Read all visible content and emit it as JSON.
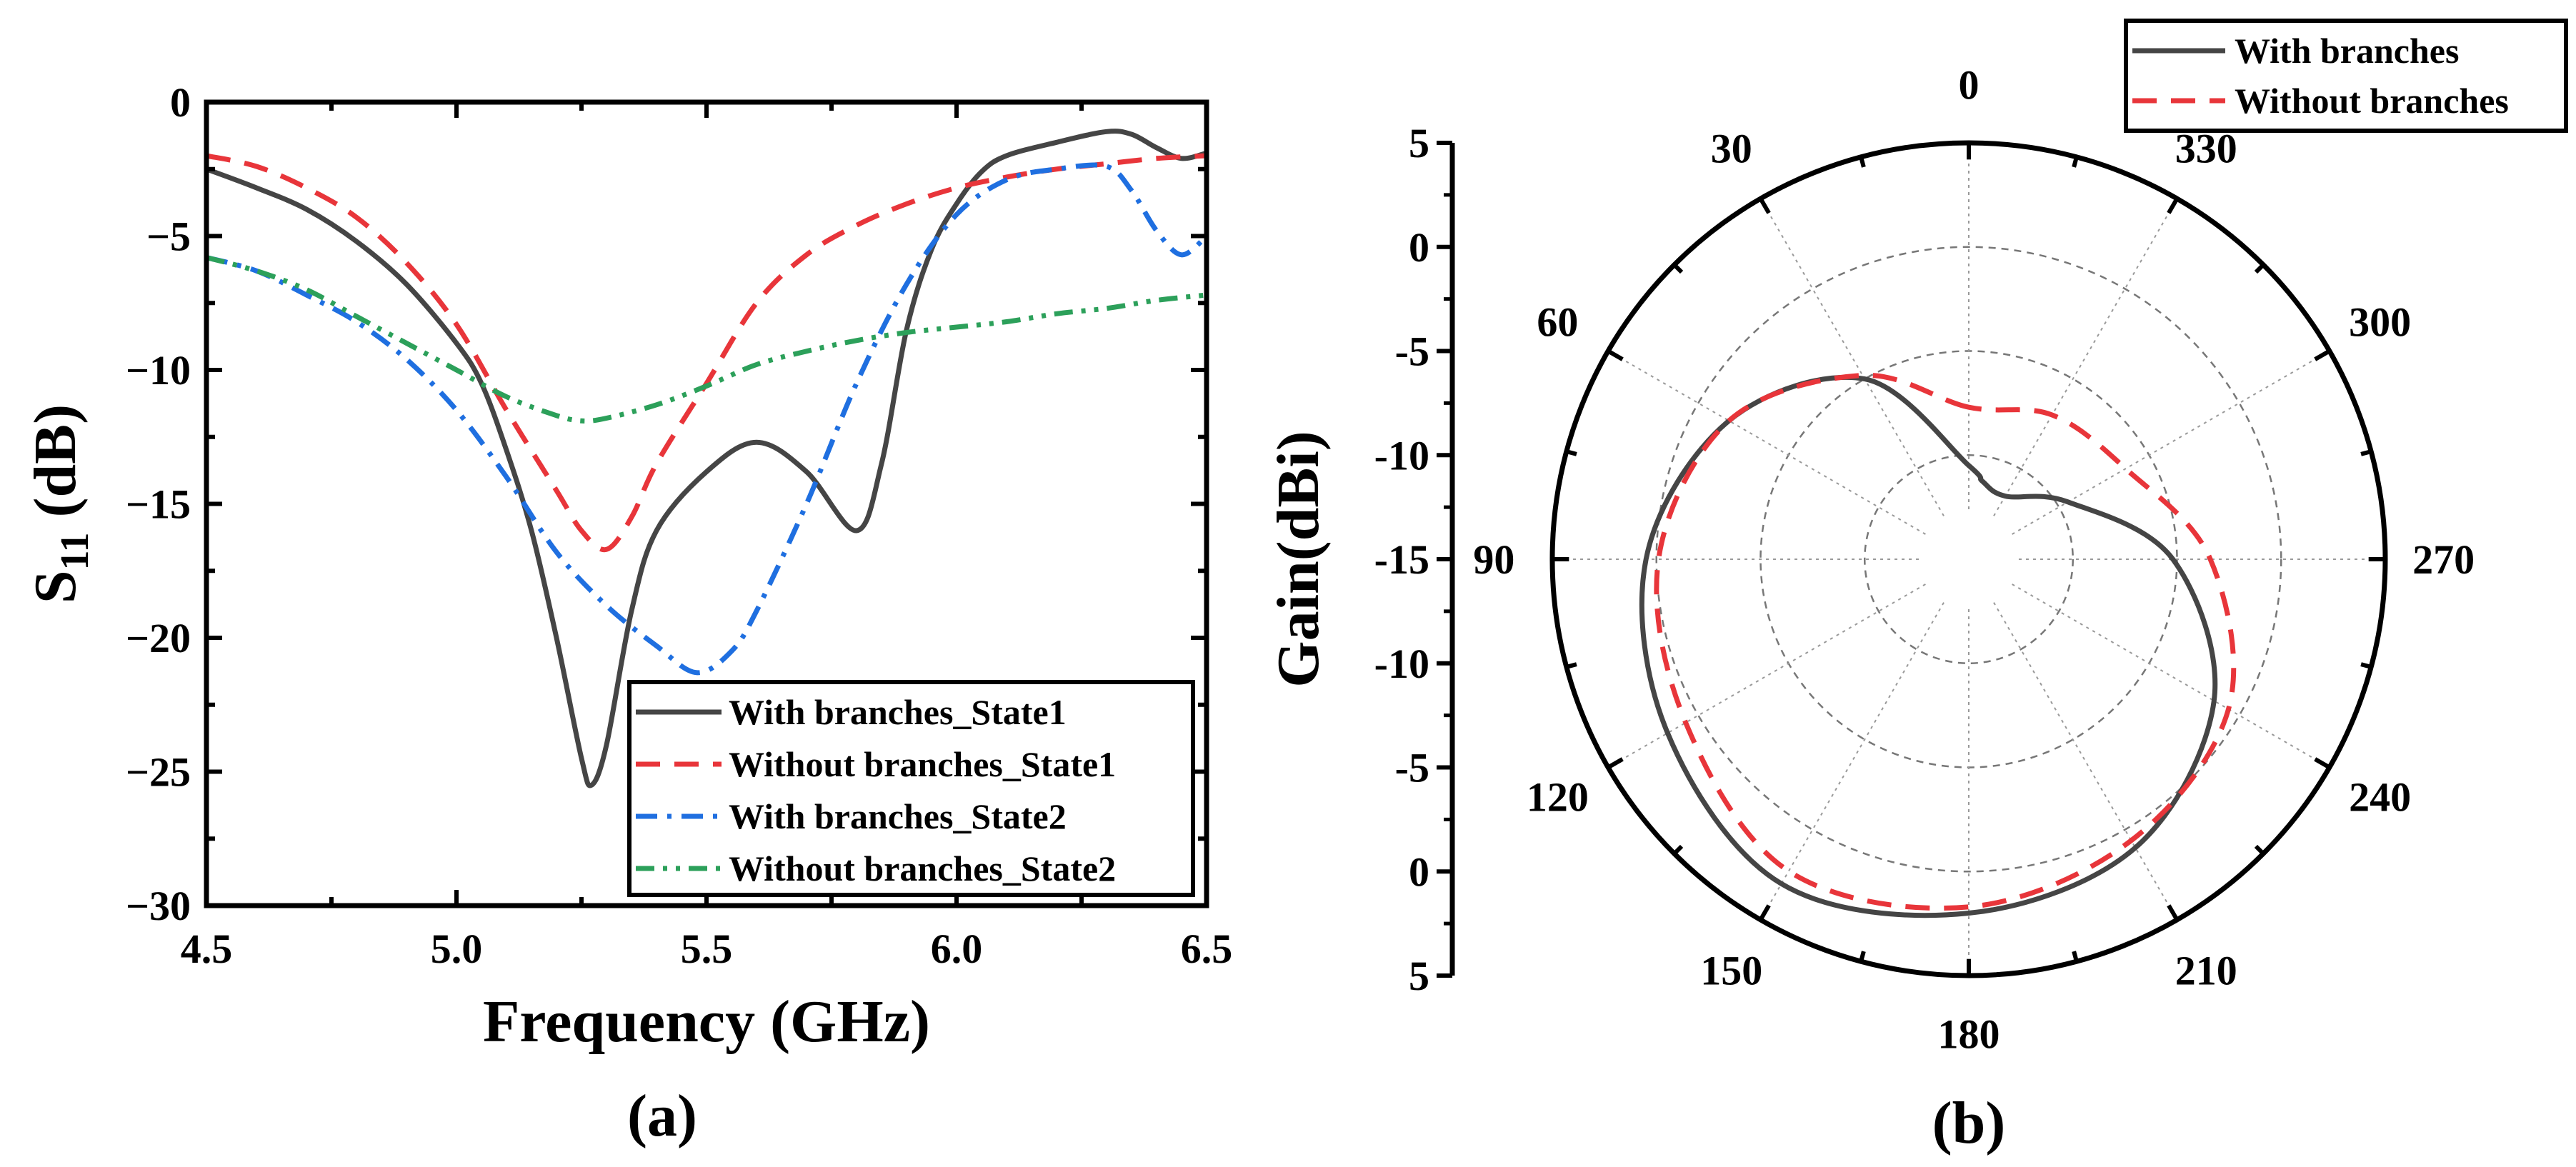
{
  "chart_data": [
    {
      "type": "line",
      "panel_label": "(a)",
      "xlabel": "Frequency  (GHz)",
      "ylabel": {
        "main": "S",
        "sub": "11",
        "unit": " (dB)"
      },
      "xlim": [
        4.5,
        6.5
      ],
      "ylim": [
        -30,
        0
      ],
      "xticks": [
        "4.5",
        "5.0",
        "5.5",
        "6.0",
        "6.5"
      ],
      "yticks": [
        "0",
        "−5",
        "−10",
        "−15",
        "−20",
        "−25",
        "−30"
      ],
      "legend_position": "bottom-right",
      "series": [
        {
          "name": "With branches_State1",
          "color": "#454545",
          "style": "solid",
          "x": [
            4.5,
            4.6,
            4.7,
            4.8,
            4.9,
            5.0,
            5.05,
            5.1,
            5.15,
            5.2,
            5.25,
            5.27,
            5.3,
            5.35,
            5.4,
            5.5,
            5.6,
            5.7,
            5.8,
            5.85,
            5.9,
            5.95,
            6.0,
            6.05,
            6.1,
            6.2,
            6.3,
            6.35,
            6.4,
            6.45,
            6.5
          ],
          "y": [
            -2.5,
            -3.2,
            -4.0,
            -5.2,
            -6.8,
            -9.0,
            -10.5,
            -13.0,
            -16.0,
            -20.0,
            -24.5,
            -25.5,
            -24.0,
            -19.0,
            -16.0,
            -13.8,
            -12.7,
            -13.8,
            -16.0,
            -13.5,
            -8.5,
            -5.5,
            -3.8,
            -2.6,
            -2.0,
            -1.5,
            -1.1,
            -1.2,
            -1.7,
            -2.1,
            -1.9
          ]
        },
        {
          "name": "Without branches_State1",
          "color": "#e8353a",
          "style": "dashed",
          "x": [
            4.5,
            4.6,
            4.7,
            4.8,
            4.9,
            5.0,
            5.1,
            5.2,
            5.25,
            5.3,
            5.35,
            5.4,
            5.5,
            5.6,
            5.7,
            5.8,
            5.9,
            6.0,
            6.1,
            6.2,
            6.3,
            6.4,
            6.5
          ],
          "y": [
            -2.0,
            -2.4,
            -3.2,
            -4.3,
            -6.0,
            -8.3,
            -11.5,
            -14.5,
            -16.0,
            -16.7,
            -15.5,
            -13.5,
            -10.5,
            -7.5,
            -5.7,
            -4.6,
            -3.8,
            -3.2,
            -2.8,
            -2.5,
            -2.3,
            -2.1,
            -2.0
          ]
        },
        {
          "name": "With branches_State2",
          "color": "#1f6fe0",
          "style": "dashdot",
          "x": [
            4.5,
            4.6,
            4.7,
            4.8,
            4.9,
            5.0,
            5.1,
            5.2,
            5.3,
            5.4,
            5.48,
            5.55,
            5.6,
            5.7,
            5.8,
            5.9,
            6.0,
            6.1,
            6.2,
            6.3,
            6.35,
            6.4,
            6.45,
            6.5
          ],
          "y": [
            -5.8,
            -6.3,
            -7.2,
            -8.2,
            -9.6,
            -11.5,
            -14.0,
            -16.8,
            -18.8,
            -20.3,
            -21.3,
            -20.5,
            -19.0,
            -15.0,
            -10.5,
            -6.8,
            -4.2,
            -2.9,
            -2.5,
            -2.4,
            -3.3,
            -4.8,
            -5.7,
            -5.0
          ]
        },
        {
          "name": "Without branches_State2",
          "color": "#2ca05a",
          "style": "dashdotdot",
          "x": [
            4.5,
            4.6,
            4.7,
            4.8,
            4.9,
            5.0,
            5.1,
            5.2,
            5.25,
            5.3,
            5.4,
            5.5,
            5.6,
            5.7,
            5.8,
            5.9,
            6.0,
            6.1,
            6.2,
            6.3,
            6.4,
            6.5
          ],
          "y": [
            -5.8,
            -6.3,
            -7.0,
            -8.0,
            -9.0,
            -10.0,
            -11.0,
            -11.7,
            -11.9,
            -11.8,
            -11.3,
            -10.6,
            -9.8,
            -9.3,
            -8.9,
            -8.6,
            -8.4,
            -8.2,
            -7.9,
            -7.7,
            -7.4,
            -7.2
          ]
        }
      ]
    },
    {
      "type": "polar",
      "panel_label": "(b)",
      "rlabel": "Gain(dBi)",
      "rlim": [
        -15,
        5
      ],
      "rticks_left_axis": [
        "5",
        "0",
        "-5",
        "-10",
        "-15",
        "-10",
        "-5",
        "0",
        "5"
      ],
      "angle_ticks": [
        "0",
        "30",
        "60",
        "90",
        "120",
        "150",
        "180",
        "210",
        "240",
        "270",
        "300",
        "330"
      ],
      "angle_direction": "counterclockwise, 0 at top",
      "legend_position": "top-right",
      "series": [
        {
          "name": "With branches",
          "color": "#454545",
          "style": "solid",
          "theta": [
            0,
            30,
            60,
            90,
            120,
            150,
            180,
            210,
            240,
            270,
            300,
            330,
            350
          ],
          "r": [
            -10.5,
            -5.0,
            -1.7,
            0.5,
            1.7,
            3.0,
            2.0,
            1.0,
            -1.4,
            -5.2,
            -9.5,
            -11.5,
            -11.2
          ]
        },
        {
          "name": "Without branches",
          "color": "#e8353a",
          "style": "dashed",
          "theta": [
            0,
            30,
            60,
            90,
            120,
            150,
            180,
            210,
            240,
            270,
            300,
            330
          ],
          "r": [
            -7.7,
            -4.8,
            -1.7,
            -0.1,
            0.7,
            2.3,
            1.7,
            0.6,
            -0.6,
            -3.4,
            -6.3,
            -7.0
          ]
        }
      ]
    }
  ]
}
